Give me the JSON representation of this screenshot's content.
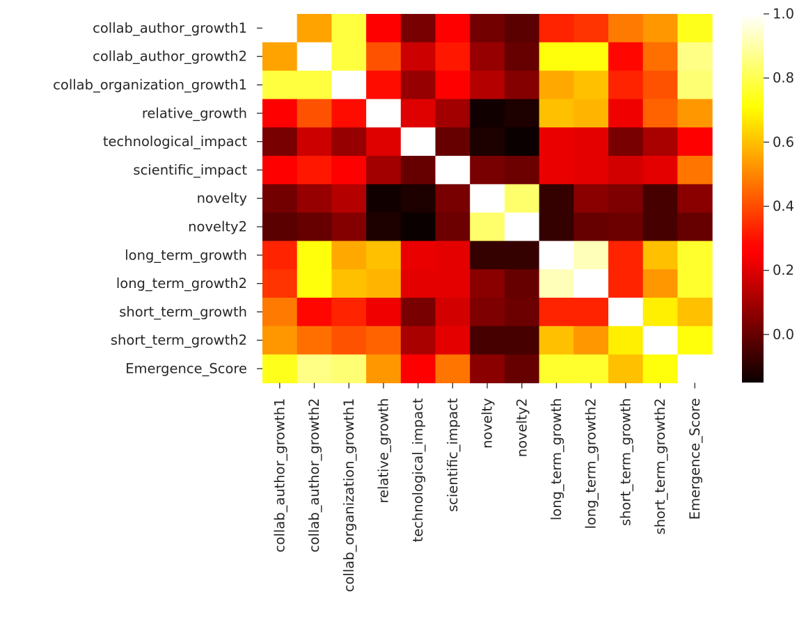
{
  "chart_data": {
    "type": "heatmap",
    "title": "",
    "xlabel": "",
    "ylabel": "",
    "labels": [
      "collab_author_growth1",
      "collab_author_growth2",
      "collab_organization_growth1",
      "relative_growth",
      "technological_impact",
      "scientific_impact",
      "novelty",
      "novelty2",
      "long_term_growth",
      "long_term_growth2",
      "short_term_growth",
      "short_term_growth2",
      "Emergence_Score"
    ],
    "matrix": [
      [
        null,
        0.55,
        0.78,
        0.25,
        0.03,
        0.25,
        0.02,
        -0.02,
        0.33,
        0.36,
        0.48,
        0.53,
        0.74
      ],
      [
        0.55,
        1.0,
        0.78,
        0.41,
        0.17,
        0.31,
        0.08,
        0.0,
        0.72,
        0.72,
        0.28,
        0.46,
        0.86
      ],
      [
        0.78,
        0.78,
        1.0,
        0.29,
        0.08,
        0.26,
        0.13,
        0.05,
        0.56,
        0.6,
        0.33,
        0.41,
        0.84
      ],
      [
        0.25,
        0.41,
        0.29,
        1.0,
        0.2,
        0.1,
        -0.14,
        -0.12,
        0.6,
        0.58,
        0.23,
        0.44,
        0.53
      ],
      [
        0.03,
        0.17,
        0.08,
        0.2,
        1.0,
        0.0,
        -0.12,
        -0.15,
        0.22,
        0.21,
        0.03,
        0.11,
        0.25
      ],
      [
        0.25,
        0.31,
        0.26,
        0.1,
        0.0,
        1.0,
        0.03,
        0.01,
        0.22,
        0.21,
        0.18,
        0.21,
        0.47
      ],
      [
        0.02,
        0.08,
        0.13,
        -0.14,
        -0.12,
        0.03,
        1.0,
        0.83,
        -0.08,
        0.06,
        0.04,
        -0.05,
        0.06
      ],
      [
        -0.02,
        0.0,
        0.05,
        -0.12,
        -0.15,
        0.01,
        0.83,
        1.0,
        -0.08,
        0.0,
        0.01,
        -0.05,
        0.0
      ],
      [
        0.33,
        0.72,
        0.56,
        0.6,
        0.22,
        0.21,
        -0.08,
        -0.08,
        1.0,
        0.92,
        0.33,
        0.6,
        0.76
      ],
      [
        0.36,
        0.72,
        0.6,
        0.58,
        0.21,
        0.21,
        0.06,
        0.0,
        0.92,
        1.0,
        0.33,
        0.53,
        0.76
      ],
      [
        0.48,
        0.28,
        0.33,
        0.23,
        0.03,
        0.18,
        0.04,
        0.01,
        0.33,
        0.33,
        1.0,
        0.68,
        0.6
      ],
      [
        0.53,
        0.46,
        0.41,
        0.44,
        0.11,
        0.21,
        -0.05,
        -0.05,
        0.6,
        0.53,
        0.68,
        1.0,
        0.72
      ],
      [
        0.74,
        0.86,
        0.84,
        0.53,
        0.25,
        0.47,
        0.06,
        0.0,
        0.76,
        0.76,
        0.6,
        0.72,
        null
      ]
    ],
    "colormap": "hot",
    "vmin": -0.15,
    "vmax": 1.0,
    "colorbar_ticks": [
      0.0,
      0.2,
      0.4,
      0.6,
      0.8,
      1.0
    ],
    "colorbar_tick_labels": [
      "0.0",
      "0.2",
      "0.4",
      "0.6",
      "0.8",
      "1.0"
    ],
    "grid": false,
    "legend": "colorbar-right"
  }
}
